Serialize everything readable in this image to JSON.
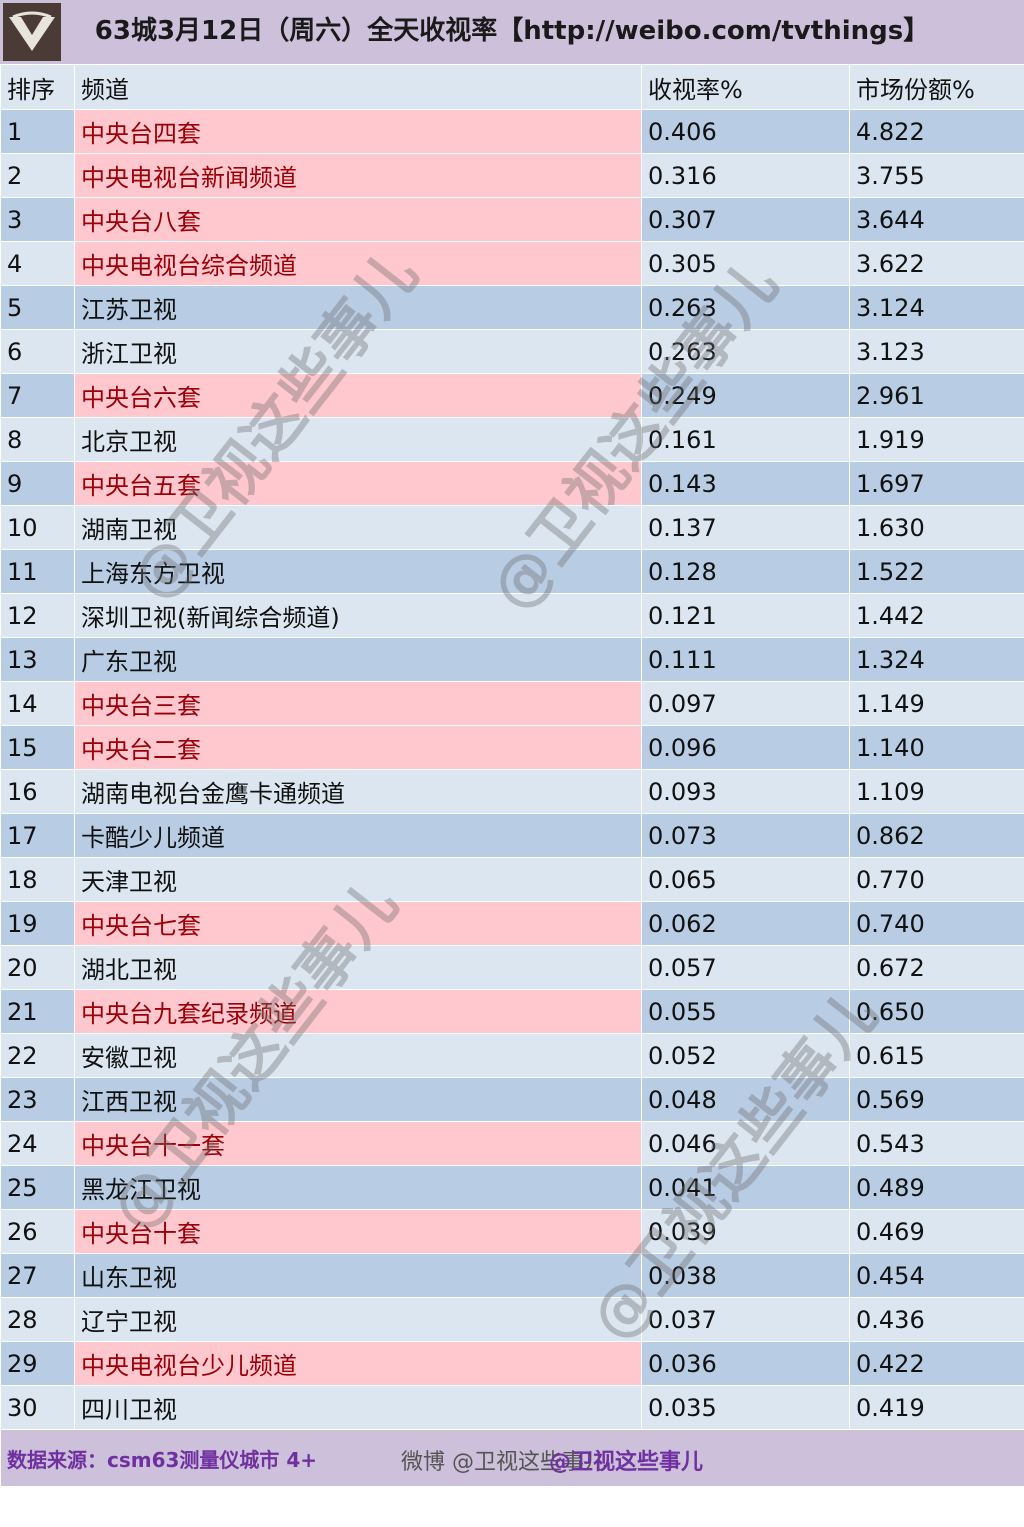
{
  "header": {
    "title": "63城3月12日（周六）全天收视率【http://weibo.com/tvthings】"
  },
  "columns": [
    "排序",
    "频道",
    "收视率%",
    "市场份额%"
  ],
  "rows": [
    {
      "rank": "1",
      "channel": "中央台四套",
      "rating": "0.406",
      "share": "4.822",
      "cctv": true
    },
    {
      "rank": "2",
      "channel": "中央电视台新闻频道",
      "rating": "0.316",
      "share": "3.755",
      "cctv": true
    },
    {
      "rank": "3",
      "channel": "中央台八套",
      "rating": "0.307",
      "share": "3.644",
      "cctv": true
    },
    {
      "rank": "4",
      "channel": "中央电视台综合频道",
      "rating": "0.305",
      "share": "3.622",
      "cctv": true
    },
    {
      "rank": "5",
      "channel": "江苏卫视",
      "rating": "0.263",
      "share": "3.124",
      "cctv": false
    },
    {
      "rank": "6",
      "channel": "浙江卫视",
      "rating": "0.263",
      "share": "3.123",
      "cctv": false
    },
    {
      "rank": "7",
      "channel": "中央台六套",
      "rating": "0.249",
      "share": "2.961",
      "cctv": true
    },
    {
      "rank": "8",
      "channel": "北京卫视",
      "rating": "0.161",
      "share": "1.919",
      "cctv": false
    },
    {
      "rank": "9",
      "channel": "中央台五套",
      "rating": "0.143",
      "share": "1.697",
      "cctv": true
    },
    {
      "rank": "10",
      "channel": "湖南卫视",
      "rating": "0.137",
      "share": "1.630",
      "cctv": false
    },
    {
      "rank": "11",
      "channel": "上海东方卫视",
      "rating": "0.128",
      "share": "1.522",
      "cctv": false
    },
    {
      "rank": "12",
      "channel": "深圳卫视(新闻综合频道)",
      "rating": "0.121",
      "share": "1.442",
      "cctv": false
    },
    {
      "rank": "13",
      "channel": "广东卫视",
      "rating": "0.111",
      "share": "1.324",
      "cctv": false
    },
    {
      "rank": "14",
      "channel": "中央台三套",
      "rating": "0.097",
      "share": "1.149",
      "cctv": true
    },
    {
      "rank": "15",
      "channel": "中央台二套",
      "rating": "0.096",
      "share": "1.140",
      "cctv": true
    },
    {
      "rank": "16",
      "channel": "湖南电视台金鹰卡通频道",
      "rating": "0.093",
      "share": "1.109",
      "cctv": false
    },
    {
      "rank": "17",
      "channel": "卡酷少儿频道",
      "rating": "0.073",
      "share": "0.862",
      "cctv": false
    },
    {
      "rank": "18",
      "channel": "天津卫视",
      "rating": "0.065",
      "share": "0.770",
      "cctv": false
    },
    {
      "rank": "19",
      "channel": "中央台七套",
      "rating": "0.062",
      "share": "0.740",
      "cctv": true
    },
    {
      "rank": "20",
      "channel": "湖北卫视",
      "rating": "0.057",
      "share": "0.672",
      "cctv": false
    },
    {
      "rank": "21",
      "channel": "中央台九套纪录频道",
      "rating": "0.055",
      "share": "0.650",
      "cctv": true
    },
    {
      "rank": "22",
      "channel": "安徽卫视",
      "rating": "0.052",
      "share": "0.615",
      "cctv": false
    },
    {
      "rank": "23",
      "channel": "江西卫视",
      "rating": "0.048",
      "share": "0.569",
      "cctv": false
    },
    {
      "rank": "24",
      "channel": "中央台十一套",
      "rating": "0.046",
      "share": "0.543",
      "cctv": true
    },
    {
      "rank": "25",
      "channel": "黑龙江卫视",
      "rating": "0.041",
      "share": "0.489",
      "cctv": false
    },
    {
      "rank": "26",
      "channel": "中央台十套",
      "rating": "0.039",
      "share": "0.469",
      "cctv": true
    },
    {
      "rank": "27",
      "channel": "山东卫视",
      "rating": "0.038",
      "share": "0.454",
      "cctv": false
    },
    {
      "rank": "28",
      "channel": "辽宁卫视",
      "rating": "0.037",
      "share": "0.436",
      "cctv": false
    },
    {
      "rank": "29",
      "channel": "中央电视台少儿频道",
      "rating": "0.036",
      "share": "0.422",
      "cctv": true
    },
    {
      "rank": "30",
      "channel": "四川卫视",
      "rating": "0.035",
      "share": "0.419",
      "cctv": false
    }
  ],
  "footer": {
    "source": "数据来源：csm63测量仪城市 4+",
    "weibo_mark": "微博 @卫视这些事儿",
    "handle": "@卫视这些事儿"
  },
  "watermark": "@卫视这些事儿",
  "colors": {
    "header_bg": "#ccc0da",
    "row_light": "#dce6f1",
    "row_dark": "#b8cce4",
    "cctv_bg": "#ffc7ce",
    "cctv_text": "#9c0006",
    "footer_text": "#7030a0"
  },
  "icons": {
    "logo": "tv-logo-icon"
  }
}
